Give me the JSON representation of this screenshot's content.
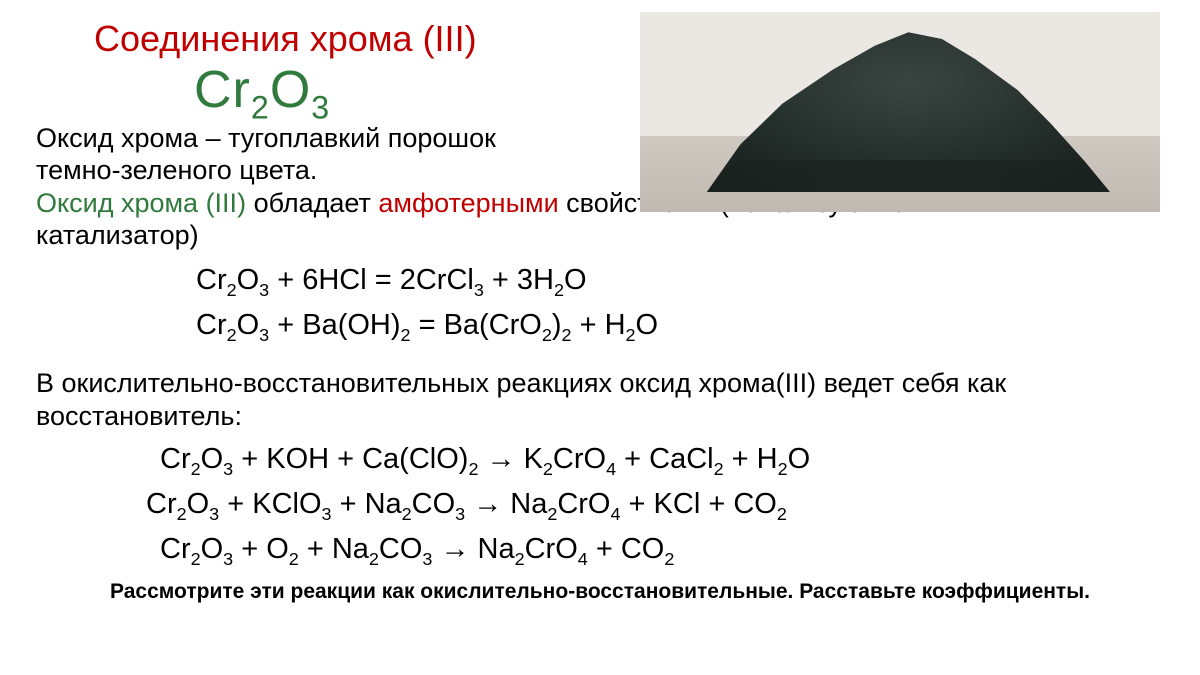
{
  "colors": {
    "title": "#c00000",
    "formula": "#2f7a3c",
    "oxide_label": "#2f7a3c",
    "amphoteric": "#c00000",
    "text": "#000000",
    "background": "#ffffff",
    "photo_bg": "#ebe8e4",
    "powder_dark": "#1a2220",
    "powder_mid": "#2d3834"
  },
  "typography": {
    "title_fontsize_pt": 27,
    "formula_fontsize_pt": 40,
    "body_fontsize_pt": 20,
    "equations_fontsize_pt": 22,
    "task_fontsize_pt": 16,
    "task_weight": "bold"
  },
  "title": "Соединения хрома (III)",
  "formula_html": "Cr<sub>2</sub>O<sub>3</sub>",
  "photo": {
    "alt": "Горка тёмно-зелёного порошка оксида хрома(III) на светлой поверхности",
    "powder_color_hex": "#2a3531"
  },
  "desc_line1": "Оксид хрома – тугоплавкий порошок",
  "desc_line2": "темно-зеленого цвета.",
  "desc_line3_prefix": "Оксид хрома (III)",
  "desc_line3_mid": " обладает ",
  "desc_line3_amph": "амфотерными",
  "desc_line3_suffix1": " свойствами (используют как",
  "desc_line3_suffix2": "катализатор)",
  "equations_amphoteric": [
    "Cr<sub>2</sub>O<sub>3</sub>  +  6HCl  =  2CrCl<sub>3</sub>  +  3H<sub>2</sub>O",
    "Cr<sub>2</sub>O<sub>3</sub>  +  Ba(OH)<sub>2</sub>  =  Ba(CrO<sub>2</sub>)<sub>2</sub> + H<sub>2</sub>O"
  ],
  "redox_intro1": "В окислительно-восстановительных реакциях оксид хрома(III) ведет себя как",
  "redox_intro2": "восстановитель:",
  "equations_redox": [
    "Cr<sub>2</sub>O<sub>3</sub>  + KOH + Ca(ClO)<sub>2</sub>  →  K<sub>2</sub>CrO<sub>4</sub> + CaCl<sub>2</sub> + H<sub>2</sub>O",
    "Cr<sub>2</sub>O<sub>3</sub>  + KClO<sub>3</sub> +  Na<sub>2</sub>CO<sub>3</sub>   →  Na<sub>2</sub>CrO<sub>4</sub>  +  KCl  + CO<sub>2</sub>",
    "Cr<sub>2</sub>O<sub>3</sub>  + O<sub>2</sub> +  Na<sub>2</sub>CO<sub>3</sub>   →  Na<sub>2</sub>CrO<sub>4</sub>  +  CO<sub>2</sub>"
  ],
  "task_text": "Рассмотрите эти реакции как окислительно-восстановительные. Расставьте коэффициенты."
}
